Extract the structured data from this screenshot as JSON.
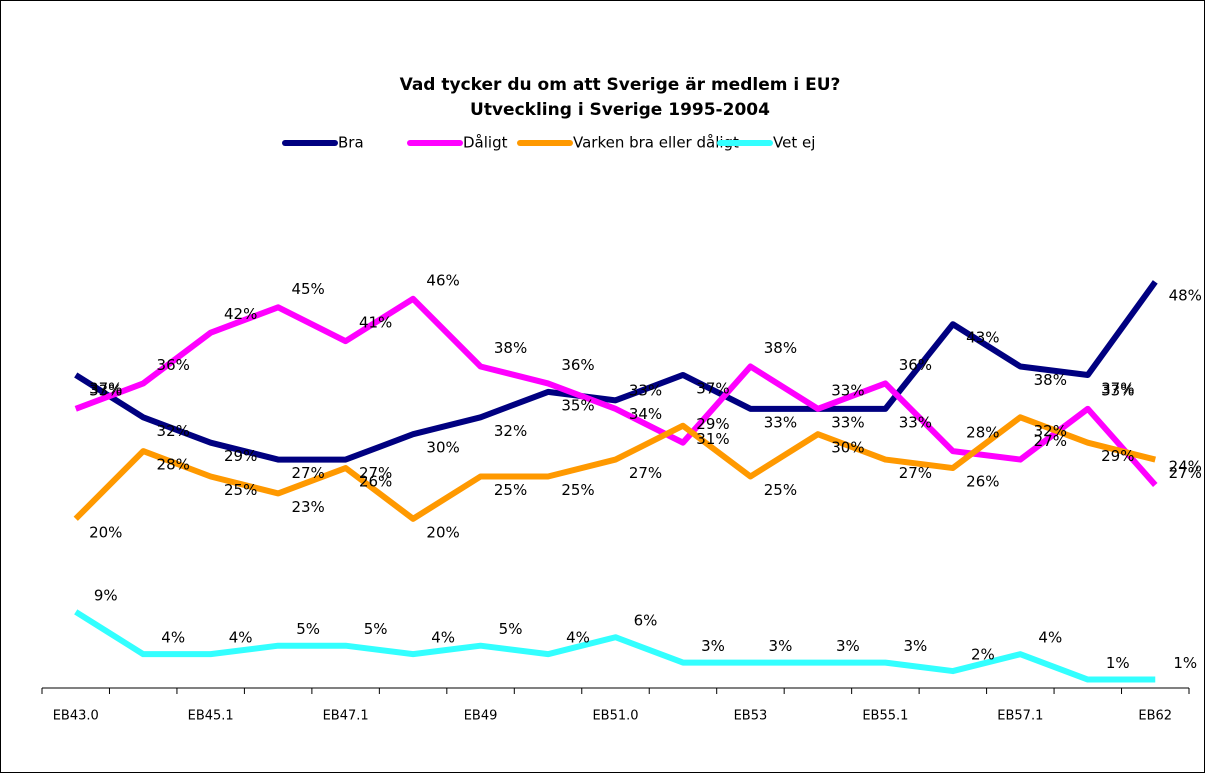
{
  "chart_data": {
    "type": "line",
    "title": "Vad tycker du om att Sverige är medlem i EU?",
    "subtitle": "Utveckling i Sverige 1995-2004",
    "categories": [
      "EB43.0",
      null,
      "EB45.1",
      null,
      "EB47.1",
      null,
      "EB49",
      null,
      "EB51.0",
      null,
      "EB53",
      null,
      "EB55.1",
      null,
      "EB57.1",
      null,
      "EB62"
    ],
    "ylim": [
      0,
      50
    ],
    "legend": "top",
    "series": [
      {
        "name": "Bra",
        "color": "#000080",
        "values": [
          37,
          32,
          29,
          27,
          27,
          30,
          32,
          35,
          34,
          37,
          33,
          33,
          33,
          43,
          38,
          37,
          48
        ],
        "value_labels": [
          "37%",
          "32%",
          "29%",
          "27%",
          "27%",
          "30%",
          "32%",
          "35%",
          "34%",
          "37%",
          "33%",
          "33%",
          "33%",
          "43%",
          "38%",
          "37%",
          "48%"
        ]
      },
      {
        "name": "Dåligt",
        "color": "#ff00ff",
        "values": [
          33,
          36,
          42,
          45,
          41,
          46,
          38,
          36,
          33,
          29,
          38,
          33,
          36,
          28,
          27,
          33,
          24
        ],
        "value_labels": [
          "33%",
          "36%",
          "42%",
          "45%",
          "41%",
          "46%",
          "38%",
          "36%",
          "33%",
          "29%",
          "38%",
          "33%",
          "36%",
          "28%",
          "27%",
          "33%",
          "24%"
        ]
      },
      {
        "name": "Varken bra eller dåligt",
        "color": "#ff9900",
        "values": [
          20,
          28,
          25,
          23,
          26,
          20,
          25,
          25,
          27,
          31,
          25,
          30,
          27,
          26,
          32,
          29,
          27
        ],
        "value_labels": [
          "20%",
          "28%",
          "25%",
          "23%",
          "26%",
          "20%",
          "25%",
          "25%",
          "27%",
          "31%",
          "25%",
          "30%",
          "27%",
          "26%",
          "32%",
          "29%",
          "27%"
        ]
      },
      {
        "name": "Vet ej",
        "color": "#33ffff",
        "values": [
          9,
          4,
          4,
          5,
          5,
          4,
          5,
          4,
          6,
          3,
          3,
          3,
          3,
          2,
          4,
          1,
          1
        ],
        "value_labels": [
          "9%",
          "4%",
          "4%",
          "5%",
          "5%",
          "4%",
          "5%",
          "4%",
          "6%",
          "3%",
          "3%",
          "3%",
          "3%",
          "2%",
          "4%",
          "1%",
          "1%"
        ]
      }
    ]
  }
}
